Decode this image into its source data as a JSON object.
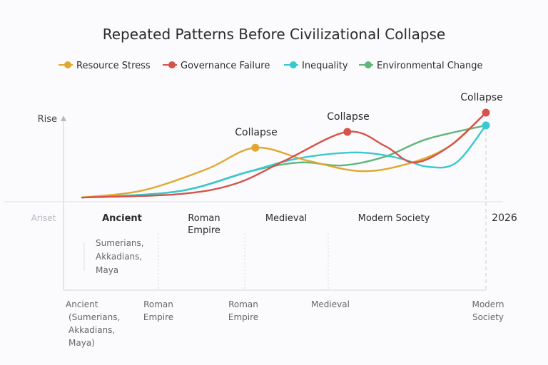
{
  "chart_data": {
    "type": "line",
    "title": "Repeated Patterns Before Civilizational Collapse",
    "ylabel": "Rise",
    "baseline_label": "Ariset",
    "xlim": [
      0,
      100
    ],
    "ylim": [
      0,
      100
    ],
    "grid": false,
    "legend_position": "top",
    "colors": {
      "Resource Stress": "#e0a830",
      "Governance Failure": "#d5534a",
      "Inequality": "#36c9d0",
      "Environmental Change": "#62b57a"
    },
    "series": [
      {
        "name": "Resource Stress",
        "x": [
          4.4,
          18.8,
          34,
          45.4,
          57.6,
          70.3,
          81.3,
          91.4,
          100
        ],
        "y": [
          4.5,
          12,
          34.6,
          57,
          43.6,
          32.3,
          39.8,
          58.6,
          94
        ],
        "marker_index": 3
      },
      {
        "name": "Governance Failure",
        "x": [
          4.4,
          27.2,
          40.7,
          52.5,
          67.2,
          76.2,
          82.9,
          91.4,
          100
        ],
        "y": [
          4.5,
          8,
          19,
          43.6,
          73.7,
          58.6,
          41.4,
          58.6,
          94
        ],
        "marker_index": 4,
        "end_marker": true
      },
      {
        "name": "Inequality",
        "x": [
          4.4,
          27.2,
          44.1,
          55.9,
          69.4,
          79.4,
          86.1,
          92.9,
          100
        ],
        "y": [
          4.5,
          11,
          32,
          46,
          52,
          46,
          37,
          41,
          80.5
        ],
        "end_marker": true
      },
      {
        "name": "Environmental Change",
        "x": [
          4.4,
          27.2,
          44.1,
          55.9,
          65.9,
          76.0,
          86.1,
          100
        ],
        "y": [
          4.5,
          11,
          32,
          41.4,
          38.3,
          47.4,
          66.2,
          80.5
        ]
      }
    ],
    "annotations": [
      {
        "text": "Collapse",
        "series": "Resource Stress"
      },
      {
        "text": "Collapse",
        "series": "Governance Failure"
      },
      {
        "text": "Collapse",
        "series": "Governance Failure",
        "at": "end"
      }
    ],
    "era_labels": [
      "Ancient",
      "Roman Empire",
      "Medieval",
      "Modern Society",
      "2026"
    ],
    "ancient_note": "Sumerians, Akkadians, Maya",
    "x_tick_labels": [
      "Ancient (Sumerians, Akkadians, Maya)",
      "Roman Empire",
      "Roman Empire",
      "Medieval",
      "Modern Society"
    ]
  }
}
